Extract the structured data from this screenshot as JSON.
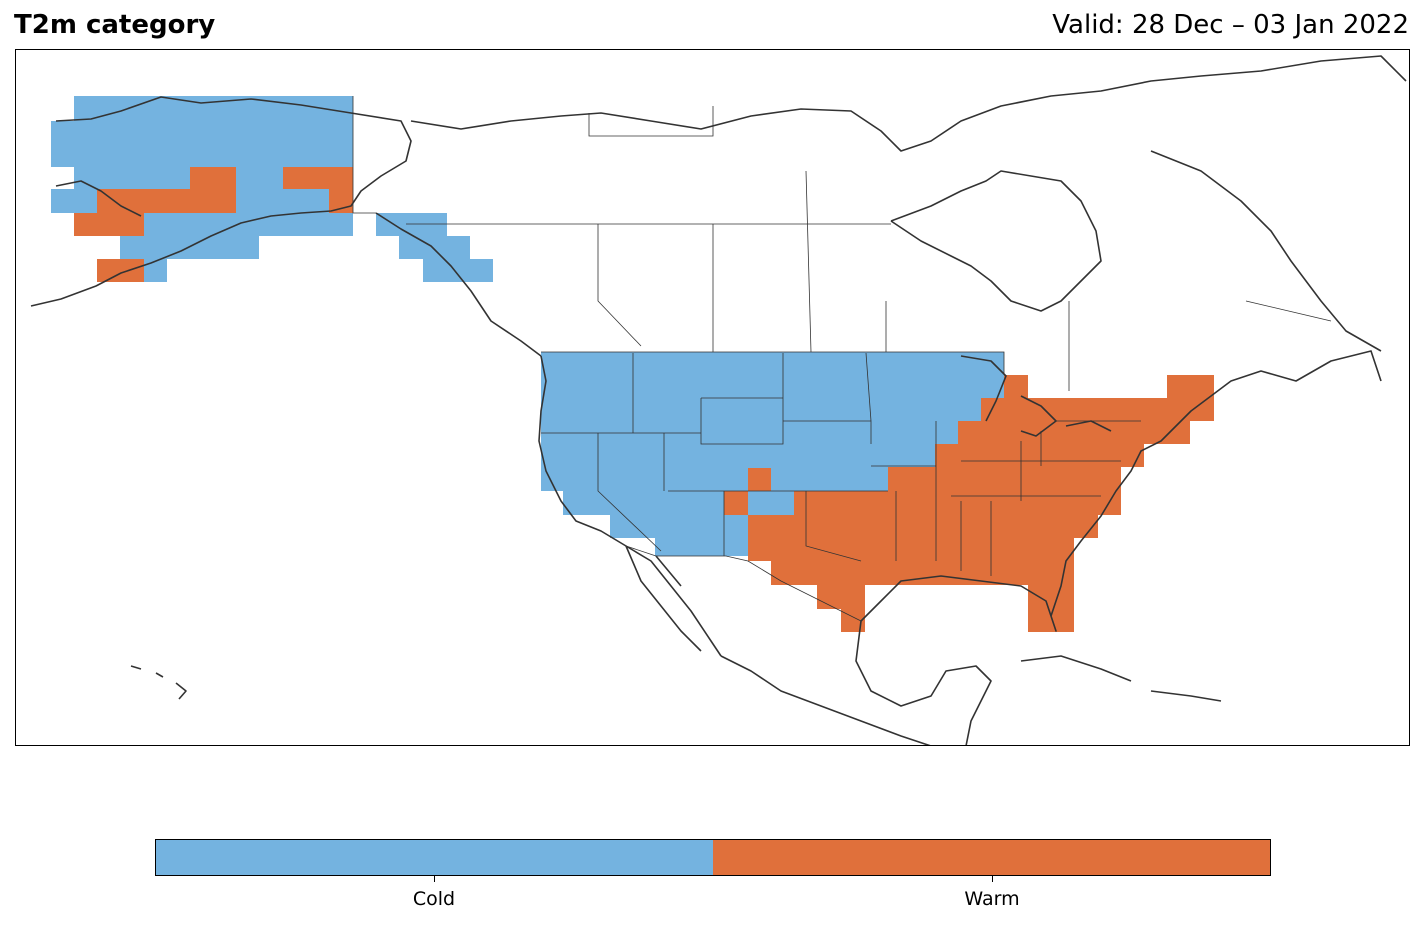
{
  "header": {
    "title": "T2m category",
    "valid_text": "Valid: 28 Dec – 03 Jan 2022"
  },
  "map": {
    "region": "North America",
    "projection": "lat-lon",
    "coastline_color": "#333333"
  },
  "legend": {
    "categories": [
      {
        "label": "Cold",
        "color": "#74b3e0"
      },
      {
        "label": "Warm",
        "color": "#e0703b"
      }
    ]
  }
}
